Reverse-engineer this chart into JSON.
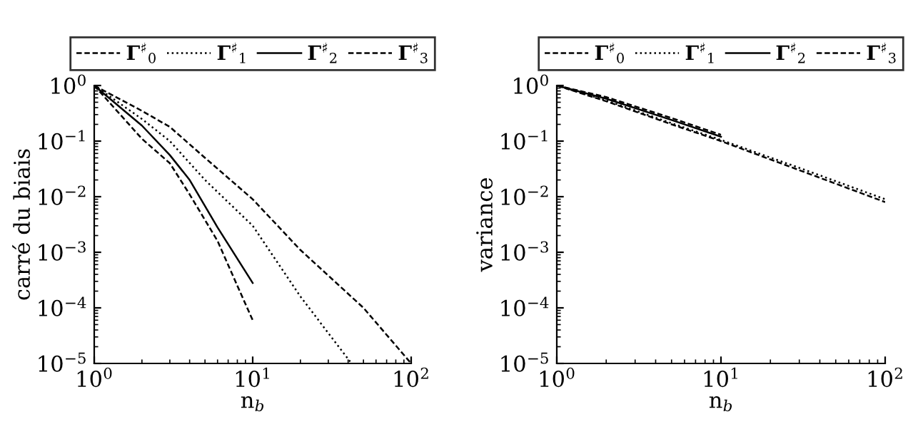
{
  "chart_data": [
    {
      "type": "line",
      "ylabel": "carré du biais",
      "xlabel": "n$_{b}$",
      "log": "xy",
      "xlim": [
        1,
        100
      ],
      "ylim": [
        1e-05,
        1
      ],
      "xticks": [
        {
          "value": 1,
          "label": "10$^{0}$"
        },
        {
          "value": 10,
          "label": "10$^{1}$"
        },
        {
          "value": 100,
          "label": "10$^{2}$"
        }
      ],
      "yticks": [
        {
          "value": 1e-05,
          "label": "10$^{−5}$"
        },
        {
          "value": 0.0001,
          "label": "10$^{−4}$"
        },
        {
          "value": 0.001,
          "label": "10$^{−3}$"
        },
        {
          "value": 0.01,
          "label": "10$^{−2}$"
        },
        {
          "value": 0.1,
          "label": "10$^{−1}$"
        },
        {
          "value": 1,
          "label": "10$^{0}$"
        }
      ],
      "grid": false,
      "legend": "top",
      "marker": "none",
      "series": [
        {
          "name": "Γ$^{♯}$$_{0}$",
          "color": "#000000",
          "line_style": "dashed",
          "x": [
            1,
            2,
            3,
            5,
            10,
            20,
            50,
            100
          ],
          "values": [
            1,
            0.35,
            0.18,
            0.05,
            0.009,
            0.0011,
            0.0001,
            1e-05
          ]
        },
        {
          "name": "Γ$^{♯}$$_{1}$",
          "color": "#000000",
          "line_style": "dotted",
          "x": [
            1,
            2,
            3,
            5,
            10,
            20,
            42
          ],
          "values": [
            1,
            0.25,
            0.1,
            0.02,
            0.003,
            0.00016,
            1e-05
          ]
        },
        {
          "name": "Γ$^{♯}$$_{2}$",
          "color": "#000000",
          "line_style": "solid",
          "x": [
            1,
            2,
            3,
            4,
            6,
            10
          ],
          "values": [
            1,
            0.19,
            0.056,
            0.02,
            0.0028,
            0.00028
          ]
        },
        {
          "name": "Γ$^{♯}$$_{3}$",
          "color": "#000000",
          "line_style": "dashed",
          "x": [
            1,
            2,
            3,
            4,
            6,
            8,
            10
          ],
          "values": [
            1,
            0.11,
            0.04,
            0.011,
            0.0016,
            0.00025,
            6e-05
          ]
        }
      ]
    },
    {
      "type": "line",
      "ylabel": "variance",
      "xlabel": "n$_{b}$",
      "log": "xy",
      "xlim": [
        1,
        100
      ],
      "ylim": [
        1e-05,
        1
      ],
      "xticks": [
        {
          "value": 1,
          "label": "10$^{0}$"
        },
        {
          "value": 10,
          "label": "10$^{1}$"
        },
        {
          "value": 100,
          "label": "10$^{2}$"
        }
      ],
      "yticks": [
        {
          "value": 1e-05,
          "label": "10$^{−5}$"
        },
        {
          "value": 0.0001,
          "label": "10$^{−4}$"
        },
        {
          "value": 0.001,
          "label": "10$^{−3}$"
        },
        {
          "value": 0.01,
          "label": "10$^{−2}$"
        },
        {
          "value": 0.1,
          "label": "10$^{−1}$"
        },
        {
          "value": 1,
          "label": "10$^{0}$"
        }
      ],
      "grid": false,
      "legend": "top",
      "marker": "none",
      "series": [
        {
          "name": "Γ$^{♯}$$_{0}$",
          "color": "#000000",
          "line_style": "dashed",
          "x": [
            1,
            2,
            5,
            10,
            30,
            100
          ],
          "values": [
            1,
            0.52,
            0.2,
            0.1,
            0.03,
            0.008
          ]
        },
        {
          "name": "Γ$^{♯}$$_{1}$",
          "color": "#000000",
          "line_style": "dotted",
          "x": [
            1,
            2,
            5,
            10,
            30,
            100
          ],
          "values": [
            1,
            0.54,
            0.21,
            0.105,
            0.033,
            0.009
          ]
        },
        {
          "name": "Γ$^{♯}$$_{2}$",
          "color": "#000000",
          "line_style": "solid",
          "x": [
            1,
            2,
            5,
            10
          ],
          "values": [
            1,
            0.58,
            0.24,
            0.12
          ]
        },
        {
          "name": "Γ$^{♯}$$_{3}$",
          "color": "#000000",
          "line_style": "dashed",
          "x": [
            1,
            2,
            5,
            10
          ],
          "values": [
            1,
            0.62,
            0.26,
            0.13
          ]
        }
      ]
    }
  ]
}
